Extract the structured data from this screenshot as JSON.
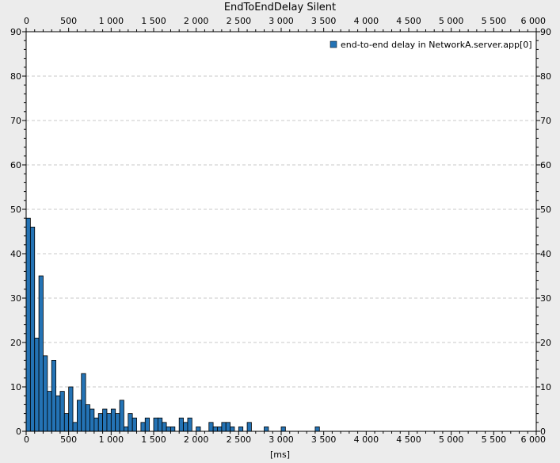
{
  "chart_data": {
    "type": "bar",
    "title": "EndToEndDelay Silent",
    "xlabel": "[ms]",
    "ylabel": "",
    "xlim": [
      0,
      6000
    ],
    "ylim": [
      0,
      90
    ],
    "xticks": [
      0,
      500,
      1000,
      1500,
      2000,
      2500,
      3000,
      3500,
      4000,
      4500,
      5000,
      5500,
      6000
    ],
    "xtick_labels": [
      "0",
      "500",
      "1 000",
      "1 500",
      "2 000",
      "2 500",
      "3 000",
      "3 500",
      "4 000",
      "4 500",
      "5 000",
      "5 500",
      "6 000"
    ],
    "yticks": [
      0,
      10,
      20,
      30,
      40,
      50,
      60,
      70,
      80,
      90
    ],
    "ytick_labels": [
      "0",
      "10",
      "20",
      "30",
      "40",
      "50",
      "60",
      "70",
      "80",
      "90"
    ],
    "grid": "horizontal dashed",
    "legend_position": "top-right",
    "bin_width": 50,
    "series": [
      {
        "name": "end-to-end delay in NetworkA.server.app[0]",
        "color": "#2473b5",
        "x": [
          25,
          75,
          125,
          175,
          225,
          275,
          325,
          375,
          425,
          475,
          525,
          575,
          625,
          675,
          725,
          775,
          825,
          875,
          925,
          975,
          1025,
          1075,
          1125,
          1175,
          1225,
          1275,
          1325,
          1375,
          1425,
          1475,
          1525,
          1575,
          1625,
          1675,
          1725,
          1775,
          1825,
          1875,
          1925,
          1975,
          2025,
          2075,
          2125,
          2175,
          2225,
          2275,
          2325,
          2375,
          2425,
          2475,
          2525,
          2575,
          2625,
          2675,
          2725,
          2775,
          2825,
          2875,
          2925,
          2975,
          3025,
          3075,
          3125,
          3175,
          3225,
          3275,
          3325,
          3375,
          3425
        ],
        "values": [
          48,
          46,
          21,
          35,
          17,
          9,
          16,
          8,
          9,
          4,
          10,
          2,
          7,
          13,
          6,
          5,
          3,
          4,
          5,
          4,
          5,
          4,
          7,
          1,
          4,
          3,
          0,
          2,
          3,
          0,
          3,
          3,
          2,
          1,
          1,
          0,
          3,
          2,
          3,
          0,
          1,
          0,
          0,
          2,
          1,
          1,
          2,
          2,
          1,
          0,
          1,
          0,
          2,
          0,
          0,
          0,
          1,
          0,
          0,
          0,
          1,
          0,
          0,
          0,
          0,
          0,
          0,
          0,
          1
        ]
      }
    ]
  }
}
